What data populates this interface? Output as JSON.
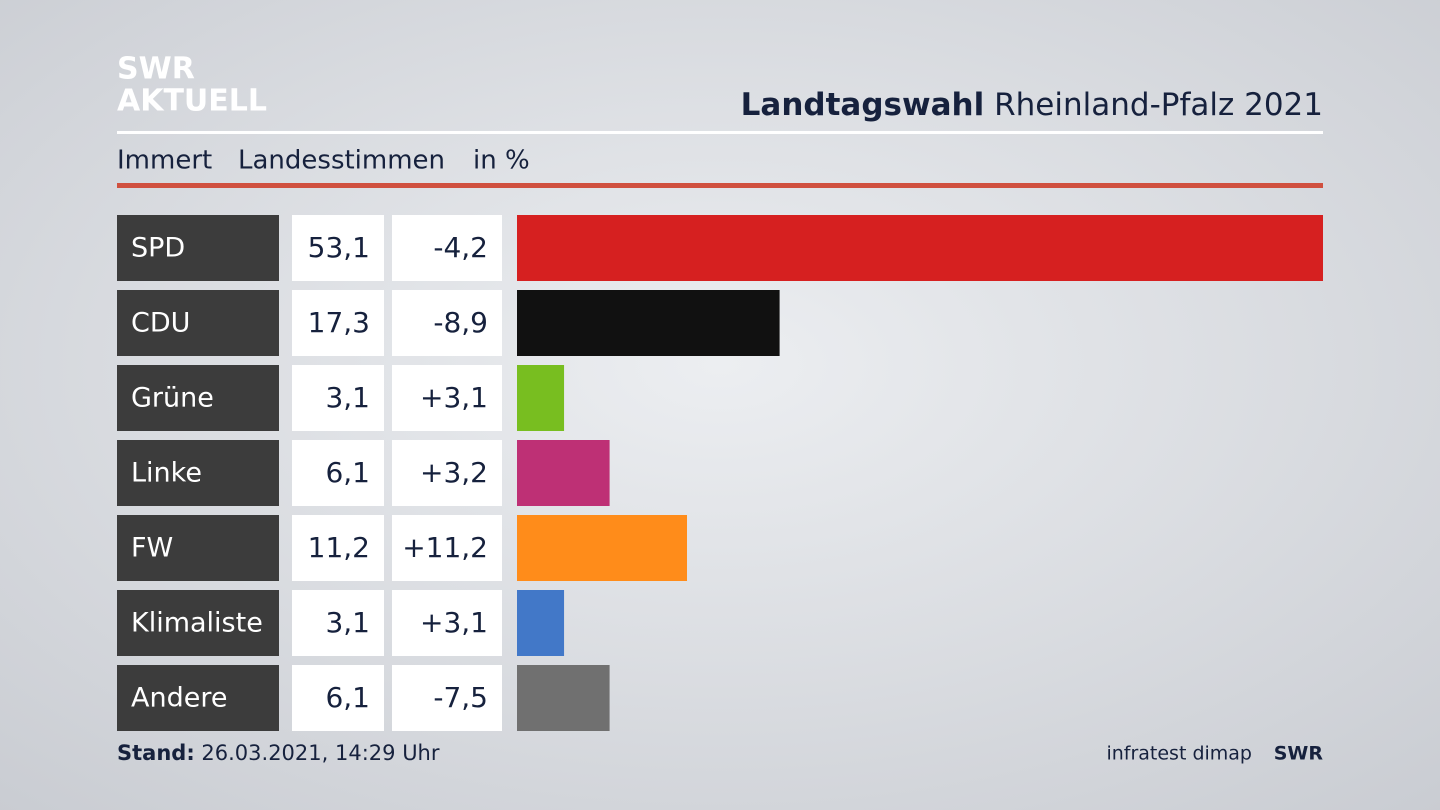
{
  "logo": {
    "line1": "SWR",
    "line2": "AKTUELL"
  },
  "chart_data": {
    "type": "bar",
    "orientation": "horizontal",
    "title_bold": "Landtagswahl",
    "title": "Rheinland-Pfalz 2021",
    "subtitle": [
      "Immert",
      "Landesstimmen",
      "in %"
    ],
    "categories": [
      "SPD",
      "CDU",
      "Grüne",
      "Linke",
      "FW",
      "Klimaliste",
      "Andere"
    ],
    "values": [
      53.1,
      17.3,
      3.1,
      6.1,
      11.2,
      3.1,
      6.1
    ],
    "value_labels": [
      "53,1",
      "17,3",
      "3,1",
      "6,1",
      "11,2",
      "3,1",
      "6,1"
    ],
    "change_labels": [
      "-4,2",
      "-8,9",
      "+3,1",
      "+3,2",
      "+11,2",
      "+3,1",
      "-7,5"
    ],
    "colors": [
      "#d62020",
      "#111111",
      "#78be20",
      "#be3075",
      "#ff8c1a",
      "#4278c8",
      "#707070"
    ],
    "xlim": [
      0,
      53.1
    ]
  },
  "footer": {
    "stand_label": "Stand:",
    "stand_date": "26.03.2021, 14:29 Uhr",
    "source": "infratest dimap",
    "brand": "SWR"
  }
}
